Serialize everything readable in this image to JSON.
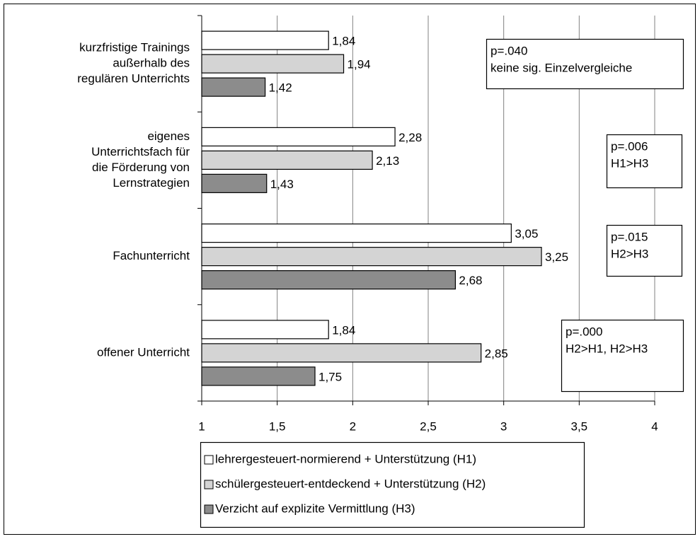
{
  "chart_data": {
    "type": "bar",
    "orientation": "horizontal",
    "categories": [
      [
        "kurzfristige Trainings",
        "außerhalb des",
        "regulären Unterrichts"
      ],
      [
        "eigenes",
        "Unterrichtsfach für",
        "die Förderung von",
        "Lernstrategien"
      ],
      [
        "Fachunterricht"
      ],
      [
        "offener Unterricht"
      ]
    ],
    "series": [
      {
        "name": "lehrergesteuert-normierend + Unterstützung (H1)",
        "color": "#ffffff",
        "values": [
          1.84,
          2.28,
          3.05,
          1.84
        ],
        "value_labels": [
          "1,84",
          "2,28",
          "3,05",
          "1,84"
        ]
      },
      {
        "name": "schülergesteuert-entdeckend + Unterstützung (H2)",
        "color": "#d4d4d4",
        "values": [
          1.94,
          2.13,
          3.25,
          2.85
        ],
        "value_labels": [
          "1,94",
          "2,13",
          "3,25",
          "2,85"
        ]
      },
      {
        "name": "Verzicht auf explizite Vermittlung (H3)",
        "color": "#8c8c8c",
        "values": [
          1.42,
          1.43,
          2.68,
          1.75
        ],
        "value_labels": [
          "1,42",
          "1,43",
          "2,68",
          "1,75"
        ]
      }
    ],
    "xlim": [
      1,
      4
    ],
    "xticks": [
      1,
      {
        "value": 1.5,
        "label": "1,5"
      },
      2,
      {
        "value": 2.5,
        "label": "2,5"
      },
      3,
      {
        "value": 3.5,
        "label": "3,5"
      },
      4
    ],
    "grid": true,
    "legend": "bottom",
    "annotations": [
      [
        "p=.040",
        "keine sig. Einzelvergleiche"
      ],
      [
        "p=.006",
        "H1>H3"
      ],
      [
        "p=.015",
        "H2>H3"
      ],
      [
        "p=.000",
        "H2>H1, H2>H3"
      ]
    ]
  }
}
